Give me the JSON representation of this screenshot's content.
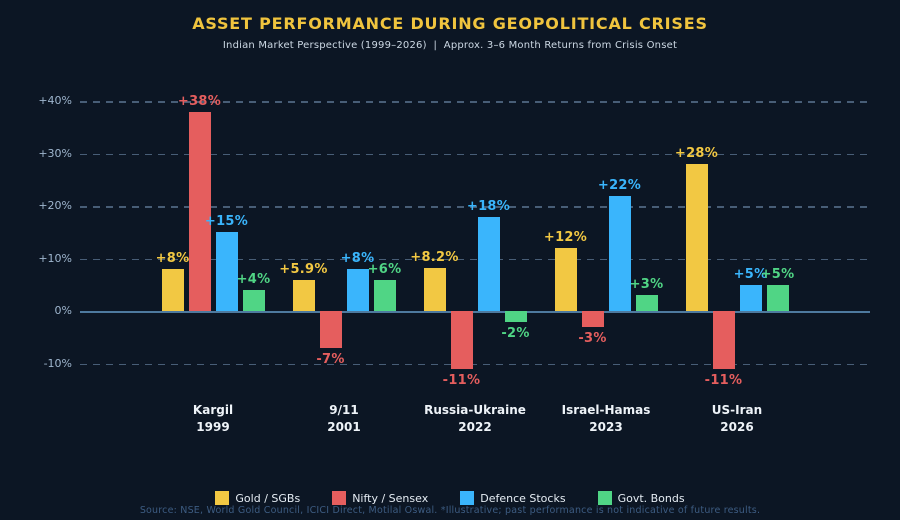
{
  "header": {
    "title": "ASSET PERFORMANCE DURING GEOPOLITICAL CRISES",
    "subtitle": "Indian Market Perspective (1999–2026)  |  Approx. 3–6 Month Returns from Crisis Onset"
  },
  "chart_data": {
    "type": "bar",
    "title": "ASSET PERFORMANCE DURING GEOPOLITICAL CRISES",
    "subtitle": "Indian Market Perspective (1999–2026)  |  Approx. 3–6 Month Returns from Crisis Onset",
    "categories": [
      "Kargil",
      "9/11",
      "Russia-Ukraine",
      "Israel-Hamas",
      "US-Iran"
    ],
    "category_years": [
      "1999",
      "2001",
      "2022",
      "2023",
      "2026"
    ],
    "series": [
      {
        "name": "Gold / SGBs",
        "color": "#f2c843",
        "values": [
          8,
          5.9,
          8.2,
          12,
          28
        ],
        "labels": [
          "+8%",
          "+5.9%",
          "+8.2%",
          "+12%",
          "+28%"
        ]
      },
      {
        "name": "Nifty / Sensex",
        "color": "#e55e5e",
        "values": [
          38,
          -7,
          -11,
          -3,
          -11
        ],
        "labels": [
          "+38%",
          "-7%",
          "-11%",
          "-3%",
          "-11%"
        ]
      },
      {
        "name": "Defence Stocks",
        "color": "#3ab5fc",
        "values": [
          15,
          8,
          18,
          22,
          5
        ],
        "labels": [
          "+15%",
          "+8%",
          "+18%",
          "+22%",
          "+5%"
        ]
      },
      {
        "name": "Govt. Bonds",
        "color": "#50d585",
        "values": [
          4,
          6,
          -2,
          3,
          5
        ],
        "labels": [
          "+4%",
          "+6%",
          "-2%",
          "+3%",
          "+5%"
        ]
      }
    ],
    "yticks": [
      {
        "value": 40,
        "label": "+40%"
      },
      {
        "value": 30,
        "label": "+30%"
      },
      {
        "value": 20,
        "label": "+20%"
      },
      {
        "value": 10,
        "label": "+10%"
      },
      {
        "value": 0,
        "label": "0%"
      },
      {
        "value": -10,
        "label": "-10%"
      }
    ],
    "ylim": [
      -13,
      42
    ],
    "ylabel": "",
    "xlabel": "",
    "grid": "horizontal-dashed",
    "legend_position": "bottom"
  },
  "footer": {
    "source": "Source: NSE, World Gold Council, ICICI Direct, Motilal Oswal. *Illustrative; past performance is not indicative of future results."
  },
  "colors": {
    "background": "#0c1624",
    "title": "#f0c43e",
    "subtitle": "#ccd8e4",
    "tick_label": "#9fb6ce",
    "zero_line": "#4e7a9f",
    "x_label": "#eef3f8",
    "footer": "#3d5c82"
  }
}
